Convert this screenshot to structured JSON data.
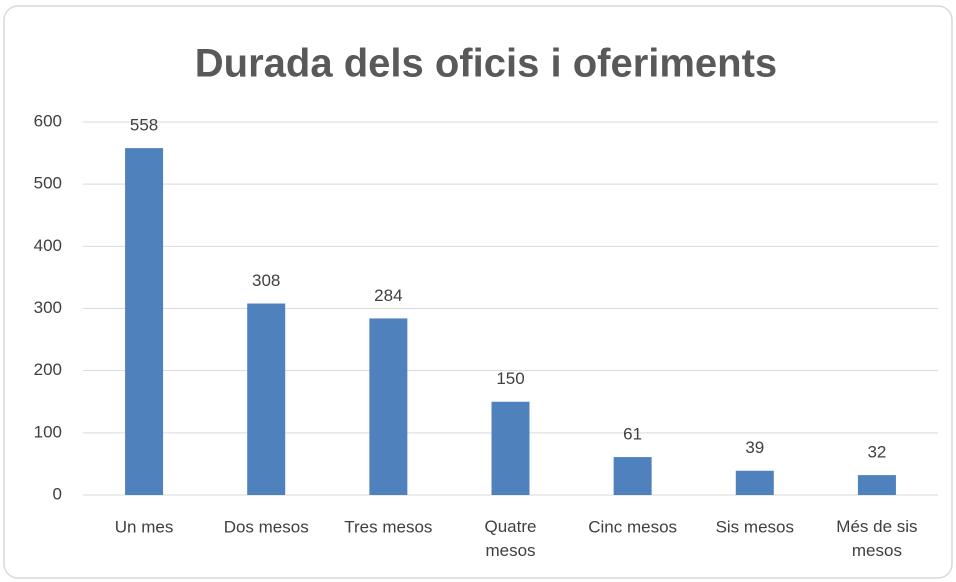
{
  "chart_data": {
    "type": "bar",
    "title": "Durada dels oficis i oferiments",
    "categories": [
      "Un mes",
      "Dos mesos",
      "Tres mesos",
      "Quatre mesos",
      "Cinc mesos",
      "Sis mesos",
      "Més de sis mesos"
    ],
    "values": [
      558,
      308,
      284,
      150,
      61,
      39,
      32
    ],
    "color": "#4f81bd",
    "ylim": [
      0,
      600
    ],
    "yticks": [
      0,
      100,
      200,
      300,
      400,
      500,
      600
    ],
    "grid": true
  }
}
